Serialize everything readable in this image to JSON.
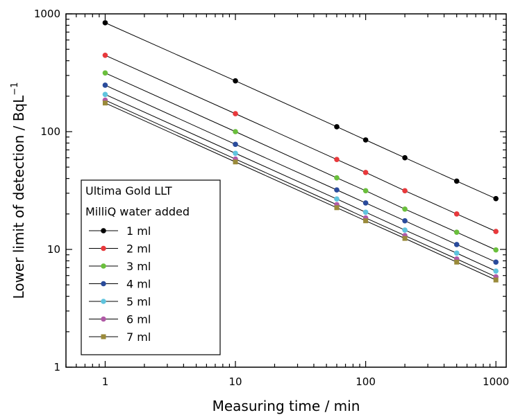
{
  "chart_data": {
    "type": "line",
    "xscale": "log",
    "yscale": "log",
    "xlim": [
      0.5,
      1200
    ],
    "ylim": [
      1,
      1000
    ],
    "xlabel": "Measuring time / min",
    "ylabel": "Lower limit of detection / BqL",
    "ylabel_superscript": "−1",
    "x_ticks": [
      1,
      10,
      100,
      1000
    ],
    "x_tick_labels": [
      "1",
      "10",
      "100",
      "1000"
    ],
    "y_ticks": [
      1,
      10,
      100,
      1000
    ],
    "y_tick_labels": [
      "1",
      "10",
      "100",
      "1000"
    ],
    "x": [
      1,
      10,
      60,
      100,
      200,
      500,
      1000
    ],
    "legend": {
      "title_line1": "Ultima Gold LLT",
      "title_line2": "MilliQ water added",
      "position": "lower-left"
    },
    "series": [
      {
        "name": "1 ml",
        "color": "#000000",
        "marker": "circle",
        "values": [
          840,
          270,
          110,
          85,
          60,
          38,
          27
        ]
      },
      {
        "name": "2 ml",
        "color": "#e8393c",
        "marker": "circle",
        "values": [
          445,
          142,
          58,
          45,
          31.5,
          20,
          14.2
        ]
      },
      {
        "name": "3 ml",
        "color": "#6abf3c",
        "marker": "circle",
        "values": [
          315,
          100,
          40.5,
          31.5,
          22,
          14,
          9.9
        ]
      },
      {
        "name": "4 ml",
        "color": "#2a4b9b",
        "marker": "circle",
        "values": [
          248,
          78,
          32,
          24.8,
          17.5,
          11,
          7.8
        ]
      },
      {
        "name": "5 ml",
        "color": "#5fc4de",
        "marker": "circle",
        "values": [
          207,
          65.5,
          26.8,
          20.7,
          14.6,
          9.3,
          6.55
        ]
      },
      {
        "name": "6 ml",
        "color": "#b05aa6",
        "marker": "circle",
        "values": [
          185,
          58.5,
          24,
          18.5,
          13.1,
          8.3,
          5.85
        ]
      },
      {
        "name": "7 ml",
        "color": "#9a8a3a",
        "marker": "square",
        "values": [
          175,
          55.3,
          22.6,
          17.5,
          12.4,
          7.8,
          5.5
        ]
      }
    ]
  }
}
